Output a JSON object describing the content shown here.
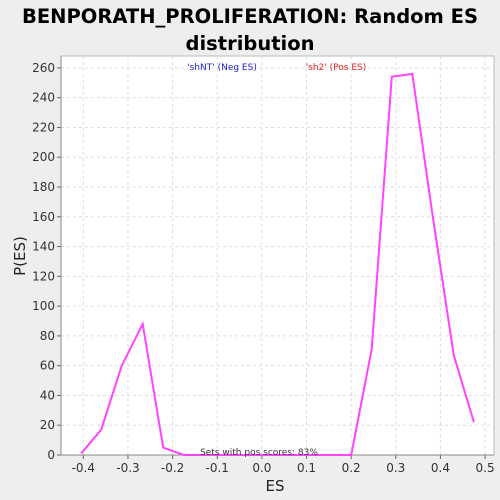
{
  "chart_data": {
    "type": "line",
    "title": "BENPORATH_PROLIFERATION: Random ES distribution",
    "xlabel": "ES",
    "ylabel": "P(ES)",
    "xlim": [
      -0.45,
      0.52
    ],
    "ylim": [
      0,
      268
    ],
    "xticks": [
      -0.4,
      -0.3,
      -0.2,
      -0.1,
      0.0,
      0.1,
      0.2,
      0.3,
      0.4,
      0.5
    ],
    "xtick_labels": [
      "-0.4",
      "-0.3",
      "-0.2",
      "-0.1",
      "0.0",
      "0.1",
      "0.2",
      "0.3",
      "0.4",
      "0.5"
    ],
    "yticks": [
      0,
      20,
      40,
      60,
      80,
      100,
      120,
      140,
      160,
      180,
      200,
      220,
      240,
      260
    ],
    "ytick_labels": [
      "0",
      "20",
      "40",
      "60",
      "80",
      "100",
      "120",
      "140",
      "160",
      "180",
      "200",
      "220",
      "240",
      "260"
    ],
    "grid": true,
    "series": [
      {
        "color": "#ff44ff",
        "x": [
          -0.405,
          -0.36,
          -0.314,
          -0.267,
          -0.221,
          -0.175,
          0.155,
          0.2,
          0.246,
          0.291,
          0.337,
          0.383,
          0.43,
          0.475
        ],
        "y": [
          1,
          17,
          60,
          88,
          5,
          0,
          0,
          0,
          71,
          254,
          256,
          160,
          67,
          22
        ]
      }
    ],
    "legend": [
      {
        "text": "'shNT' (Neg ES)",
        "color": "#2222cc"
      },
      {
        "text": "'sh2' (Pos ES)",
        "color": "#dd2222"
      }
    ],
    "annotations": [
      {
        "text": "Sets with pos scores: 83%"
      }
    ]
  }
}
